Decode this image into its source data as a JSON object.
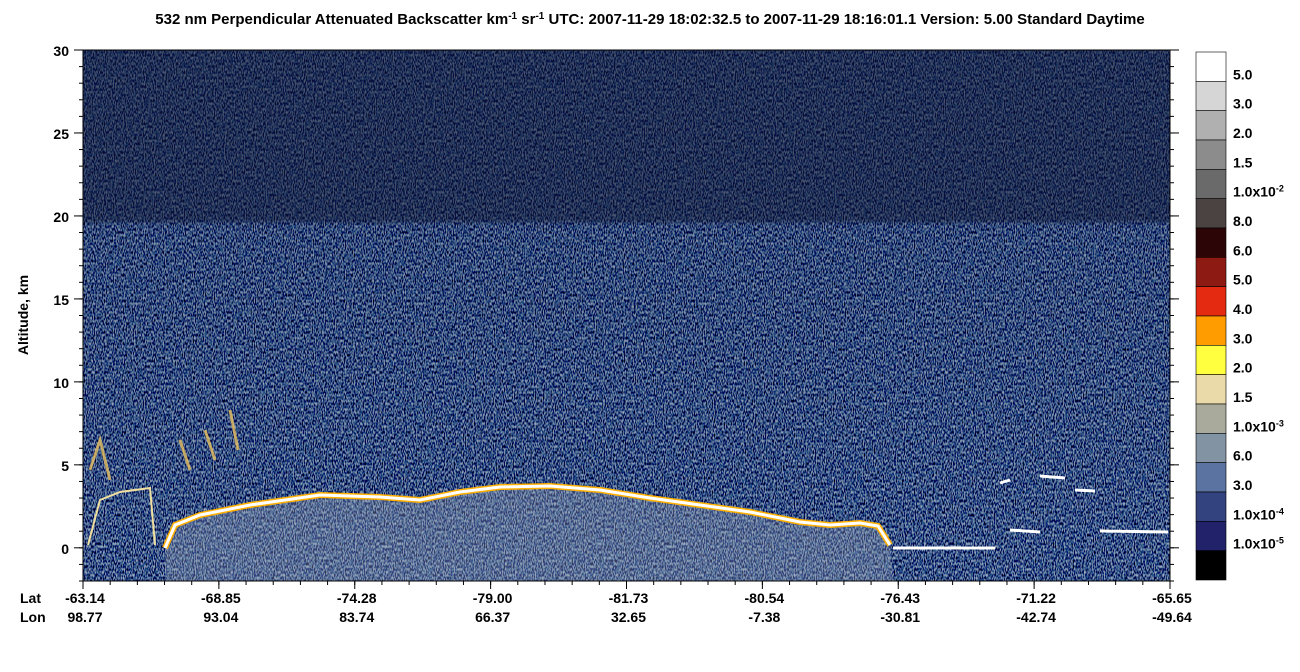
{
  "chart_data": {
    "type": "heatmap",
    "title": [
      "532 nm Perpendicular Attenuated Backscatter km",
      "-1",
      " sr",
      "-1",
      "  UTC: 2007-11-29 18:02:32.5 to 2007-11-29 18:16:01.1  Version: 5.00 Standard Daytime"
    ],
    "ylabel": "Altitude, km",
    "ylim": [
      -2,
      30
    ],
    "yticks": [
      0,
      5,
      10,
      15,
      20,
      25,
      30
    ],
    "x_rows": [
      {
        "name": "Lat",
        "labels": [
          "-63.14",
          "-68.85",
          "-74.28",
          "-79.00",
          "-81.73",
          "-80.54",
          "-76.43",
          "-71.22",
          "-65.65"
        ]
      },
      {
        "name": "Lon",
        "labels": [
          "98.77",
          "93.04",
          "83.74",
          "66.37",
          "32.65",
          "-7.38",
          "-30.81",
          "-42.74",
          "-49.64"
        ]
      }
    ],
    "colorbar": {
      "colors": [
        "#ffffff",
        "#d6d6d6",
        "#b0b0b0",
        "#8c8c8c",
        "#6a6a6a",
        "#4a4342",
        "#2c0606",
        "#8e1a14",
        "#e42a10",
        "#ff9c00",
        "#ffff40",
        "#eadaaa",
        "#a9aa9c",
        "#8293a4",
        "#5b73a0",
        "#33437f",
        "#22226a",
        "#000000"
      ],
      "labels": [
        {
          "text": "5.0"
        },
        {
          "text": "3.0"
        },
        {
          "text": "2.0"
        },
        {
          "text": "1.5"
        },
        {
          "text": "1.0x10",
          "exp": "-2"
        },
        {
          "text": "8.0"
        },
        {
          "text": "6.0"
        },
        {
          "text": "5.0"
        },
        {
          "text": "4.0"
        },
        {
          "text": "3.0"
        },
        {
          "text": "2.0"
        },
        {
          "text": "1.5"
        },
        {
          "text": "1.0x10",
          "exp": "-3"
        },
        {
          "text": "6.0"
        },
        {
          "text": "3.0"
        },
        {
          "text": "1.0x10",
          "exp": "-4"
        },
        {
          "text": "1.0x10",
          "exp": "-5"
        }
      ]
    }
  }
}
